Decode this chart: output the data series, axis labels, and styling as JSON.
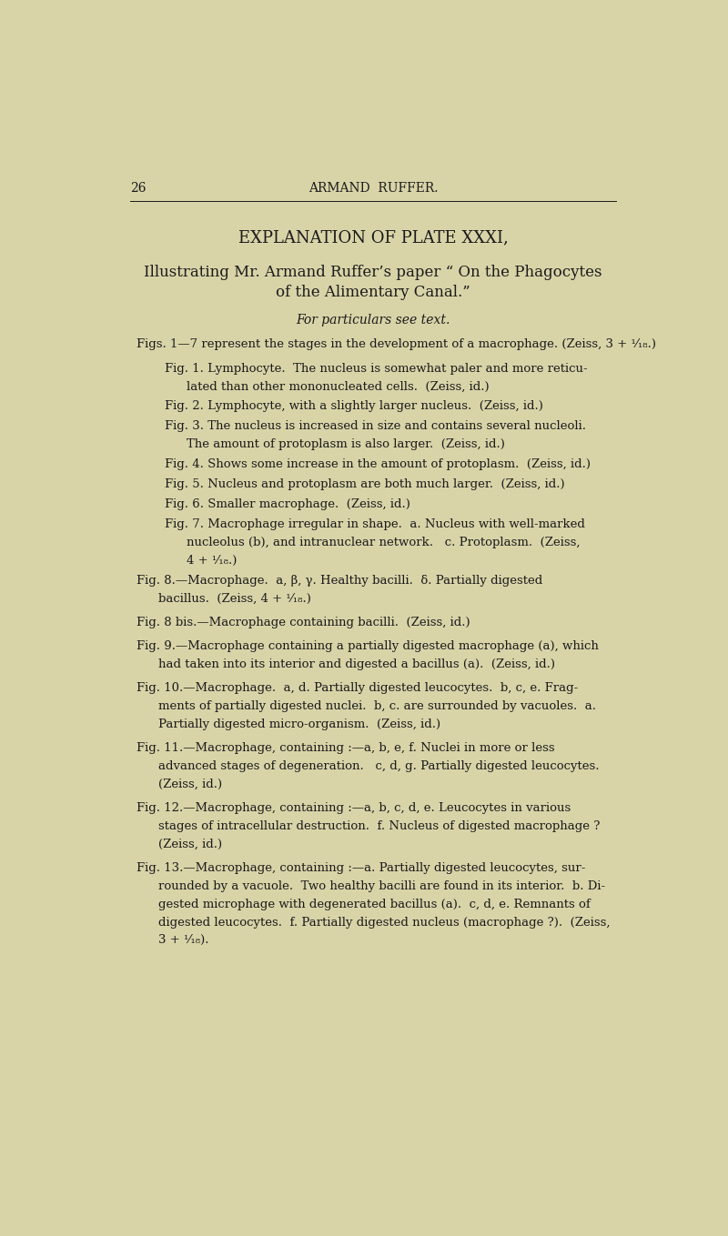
{
  "background_color": "#d9d4a8",
  "page_number": "26",
  "header": "ARMAND  RUFFER.",
  "title": "EXPLANATION OF PLATE XXXI,",
  "subtitle_line1": "Illustrating Mr. Armand Ruffer’s paper “ On the Phagocytes",
  "subtitle_line2": "of the Alimentary Canal.”",
  "italic_line": "For particulars see text.",
  "body_lines": [
    {
      "indent": false,
      "text": "Figs. 1—7 represent the stages in the development of a macrophage. (Zeiss, 3 + ¹⁄₁₈.)"
    },
    {
      "indent": true,
      "text": "Fig. 1. Lymphocyte.  The nucleus is somewhat paler and more reticu-\nlated than other mononucleated cells.  (Zeiss, id.)"
    },
    {
      "indent": true,
      "text": "Fig. 2. Lymphocyte, with a slightly larger nucleus.  (Zeiss, id.)"
    },
    {
      "indent": true,
      "text": "Fig. 3. The nucleus is increased in size and contains several nucleoli.\nThe amount of protoplasm is also larger.  (Zeiss, id.)"
    },
    {
      "indent": true,
      "text": "Fig. 4. Shows some increase in the amount of protoplasm.  (Zeiss, id.)"
    },
    {
      "indent": true,
      "text": "Fig. 5. Nucleus and protoplasm are both much larger.  (Zeiss, id.)"
    },
    {
      "indent": true,
      "text": "Fig. 6. Smaller macrophage.  (Zeiss, id.)"
    },
    {
      "indent": true,
      "text": "Fig. 7. Macrophage irregular in shape.  a. Nucleus with well-marked\nnucleolus (b), and intranuclear network.   c. Protoplasm.  (Zeiss,\n4 + ¹⁄₁₈.)"
    },
    {
      "indent": false,
      "text": "Fig. 8.—Macrophage.  a, β, γ. Healthy bacilli.  δ. Partially digested\nbacillus.  (Zeiss, 4 + ¹⁄₁₈.)"
    },
    {
      "indent": false,
      "text": "Fig. 8 bis.—Macrophage containing bacilli.  (Zeiss, id.)"
    },
    {
      "indent": false,
      "text": "Fig. 9.—Macrophage containing a partially digested macrophage (a), which\nhad taken into its interior and digested a bacillus (a).  (Zeiss, id.)"
    },
    {
      "indent": false,
      "text": "Fig. 10.—Macrophage.  a, d. Partially digested leucocytes.  b, c, e. Frag-\nments of partially digested nuclei.  b, c. are surrounded by vacuoles.  a.\nPartially digested micro-organism.  (Zeiss, id.)"
    },
    {
      "indent": false,
      "text": "Fig. 11.—Macrophage, containing :—a, b, e, f. Nuclei in more or less\nadvanced stages of degeneration.   c, d, g. Partially digested leucocytes.\n(Zeiss, id.)"
    },
    {
      "indent": false,
      "text": "Fig. 12.—Macrophage, containing :—a, b, c, d, e. Leucocytes in various\nstages of intracellular destruction.  f. Nucleus of digested macrophage ?\n(Zeiss, id.)"
    },
    {
      "indent": false,
      "text": "Fig. 13.—Macrophage, containing :—a. Partially digested leucocytes, sur-\nrounded by a vacuole.  Two healthy bacilli are found in its interior.  b. Di-\ngested microphage with degenerated bacillus (a).  c, d, e. Remnants of\ndigested leucocytes.  f. Partially digested nucleus (macrophage ?).  (Zeiss,\n3 + ¹⁄₁₈)."
    }
  ],
  "text_color": "#1a1a1a",
  "header_fontsize": 10,
  "title_fontsize": 13,
  "subtitle_fontsize": 12,
  "body_fontsize": 9.5,
  "italic_fontsize": 10
}
